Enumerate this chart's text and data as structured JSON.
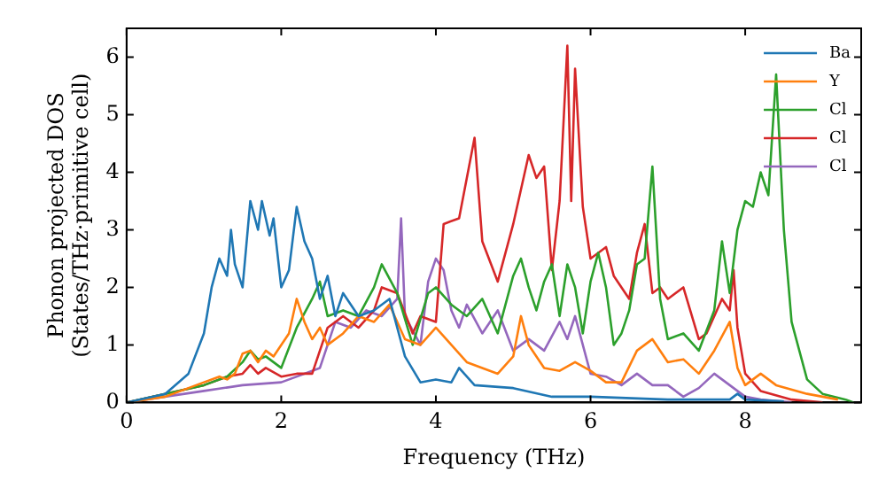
{
  "chart_data": {
    "type": "line",
    "xlabel": "Frequency (THz)",
    "ylabel": "Phonon projected DOS\n(States/THz·primitive cell)",
    "xlim": [
      0,
      9.5
    ],
    "ylim": [
      0,
      6.5
    ],
    "xticks": [
      0,
      2,
      4,
      6,
      8
    ],
    "yticks": [
      0,
      1,
      2,
      3,
      4,
      5,
      6
    ],
    "grid": false,
    "legend": "top right",
    "marker": "none",
    "line_style": "solid",
    "series": [
      {
        "name": "Ba",
        "color": "#1f77b4",
        "x": [
          0,
          0.5,
          0.8,
          1.0,
          1.1,
          1.2,
          1.3,
          1.35,
          1.4,
          1.5,
          1.6,
          1.7,
          1.75,
          1.85,
          1.9,
          2.0,
          2.1,
          2.2,
          2.3,
          2.4,
          2.5,
          2.6,
          2.7,
          2.8,
          3.0,
          3.2,
          3.4,
          3.6,
          3.8,
          4.0,
          4.2,
          4.3,
          4.5,
          5.0,
          5.5,
          6.0,
          7.0,
          7.8,
          7.9,
          8.0,
          8.5
        ],
        "values": [
          0,
          0.15,
          0.5,
          1.2,
          2.0,
          2.5,
          2.2,
          3.0,
          2.4,
          2.0,
          3.5,
          3.0,
          3.5,
          2.9,
          3.2,
          2.0,
          2.3,
          3.4,
          2.8,
          2.5,
          1.8,
          2.2,
          1.5,
          1.9,
          1.5,
          1.6,
          1.8,
          0.8,
          0.35,
          0.4,
          0.35,
          0.6,
          0.3,
          0.25,
          0.1,
          0.1,
          0.05,
          0.05,
          0.15,
          0.05,
          0.02
        ]
      },
      {
        "name": "Y",
        "color": "#ff7f0e",
        "x": [
          0,
          0.5,
          1.0,
          1.2,
          1.3,
          1.4,
          1.5,
          1.6,
          1.7,
          1.8,
          1.9,
          2.0,
          2.1,
          2.2,
          2.3,
          2.4,
          2.5,
          2.6,
          2.8,
          3.0,
          3.2,
          3.4,
          3.6,
          3.8,
          4.0,
          4.2,
          4.4,
          4.6,
          4.8,
          5.0,
          5.1,
          5.2,
          5.4,
          5.6,
          5.8,
          6.0,
          6.2,
          6.4,
          6.6,
          6.8,
          7.0,
          7.2,
          7.4,
          7.6,
          7.8,
          7.9,
          8.0,
          8.2,
          8.4,
          8.8,
          9.2
        ],
        "values": [
          0,
          0.1,
          0.35,
          0.45,
          0.4,
          0.5,
          0.85,
          0.9,
          0.7,
          0.9,
          0.8,
          1.0,
          1.2,
          1.8,
          1.4,
          1.1,
          1.3,
          1.0,
          1.2,
          1.5,
          1.4,
          1.7,
          1.1,
          1.0,
          1.3,
          1.0,
          0.7,
          0.6,
          0.5,
          0.8,
          1.5,
          1.0,
          0.6,
          0.55,
          0.7,
          0.55,
          0.35,
          0.35,
          0.9,
          1.1,
          0.7,
          0.75,
          0.5,
          0.9,
          1.4,
          0.6,
          0.3,
          0.5,
          0.3,
          0.15,
          0.05
        ]
      },
      {
        "name": "Cl",
        "color": "#2ca02c",
        "x": [
          0,
          1.0,
          1.3,
          1.5,
          1.6,
          1.7,
          1.8,
          2.0,
          2.2,
          2.4,
          2.5,
          2.6,
          2.8,
          3.0,
          3.2,
          3.3,
          3.5,
          3.7,
          3.9,
          4.0,
          4.2,
          4.4,
          4.6,
          4.8,
          5.0,
          5.1,
          5.2,
          5.3,
          5.4,
          5.5,
          5.6,
          5.7,
          5.8,
          5.9,
          6.0,
          6.1,
          6.2,
          6.3,
          6.4,
          6.5,
          6.6,
          6.7,
          6.8,
          6.9,
          7.0,
          7.2,
          7.4,
          7.6,
          7.7,
          7.8,
          7.9,
          8.0,
          8.1,
          8.2,
          8.3,
          8.4,
          8.5,
          8.6,
          8.8,
          9.0,
          9.3,
          9.4
        ],
        "values": [
          0,
          0.3,
          0.45,
          0.7,
          0.9,
          0.75,
          0.8,
          0.6,
          1.3,
          1.8,
          2.1,
          1.5,
          1.6,
          1.5,
          2.0,
          2.4,
          1.9,
          1.0,
          1.9,
          2.0,
          1.7,
          1.5,
          1.8,
          1.2,
          2.2,
          2.5,
          2.0,
          1.6,
          2.1,
          2.4,
          1.5,
          2.4,
          2.0,
          1.2,
          2.1,
          2.6,
          2.0,
          1.0,
          1.2,
          1.6,
          2.4,
          2.5,
          4.1,
          1.8,
          1.1,
          1.2,
          0.9,
          1.6,
          2.8,
          1.9,
          3.0,
          3.5,
          3.4,
          4.0,
          3.6,
          5.7,
          3.0,
          1.4,
          0.4,
          0.15,
          0.05,
          0
        ]
      },
      {
        "name": "Cl",
        "color": "#d62728",
        "x": [
          0,
          1.0,
          1.3,
          1.5,
          1.6,
          1.7,
          1.8,
          2.0,
          2.2,
          2.4,
          2.6,
          2.8,
          3.0,
          3.2,
          3.3,
          3.5,
          3.7,
          3.8,
          4.0,
          4.1,
          4.3,
          4.5,
          4.6,
          4.8,
          5.0,
          5.2,
          5.3,
          5.4,
          5.5,
          5.6,
          5.7,
          5.75,
          5.8,
          5.9,
          6.0,
          6.2,
          6.3,
          6.5,
          6.6,
          6.7,
          6.8,
          6.9,
          7.0,
          7.2,
          7.4,
          7.5,
          7.7,
          7.8,
          7.85,
          7.9,
          8.0,
          8.2,
          8.6,
          9.0
        ],
        "values": [
          0,
          0.3,
          0.45,
          0.5,
          0.65,
          0.5,
          0.6,
          0.45,
          0.5,
          0.5,
          1.3,
          1.5,
          1.3,
          1.6,
          2.0,
          1.9,
          1.2,
          1.5,
          1.4,
          3.1,
          3.2,
          4.6,
          2.8,
          2.1,
          3.1,
          4.3,
          3.9,
          4.1,
          2.3,
          3.5,
          6.2,
          3.5,
          5.8,
          3.4,
          2.5,
          2.7,
          2.2,
          1.8,
          2.6,
          3.1,
          1.9,
          2.0,
          1.8,
          2.0,
          1.1,
          1.2,
          1.8,
          1.6,
          2.3,
          1.3,
          0.5,
          0.2,
          0.05,
          0
        ]
      },
      {
        "name": "Cl",
        "color": "#9467bd",
        "x": [
          0,
          1.0,
          1.5,
          2.0,
          2.5,
          2.6,
          2.7,
          2.9,
          3.1,
          3.3,
          3.5,
          3.55,
          3.6,
          3.8,
          3.9,
          4.0,
          4.1,
          4.2,
          4.3,
          4.4,
          4.6,
          4.8,
          5.0,
          5.2,
          5.4,
          5.6,
          5.7,
          5.8,
          6.0,
          6.2,
          6.4,
          6.6,
          6.8,
          7.0,
          7.2,
          7.4,
          7.6,
          7.8,
          8.0,
          8.2,
          8.6
        ],
        "values": [
          0,
          0.2,
          0.3,
          0.35,
          0.6,
          1.0,
          1.4,
          1.3,
          1.6,
          1.5,
          1.8,
          3.2,
          1.5,
          1.0,
          2.1,
          2.5,
          2.3,
          1.6,
          1.3,
          1.7,
          1.2,
          1.6,
          0.9,
          1.1,
          0.9,
          1.4,
          1.1,
          1.5,
          0.5,
          0.45,
          0.3,
          0.5,
          0.3,
          0.3,
          0.1,
          0.25,
          0.5,
          0.3,
          0.1,
          0.05,
          0
        ]
      }
    ]
  }
}
